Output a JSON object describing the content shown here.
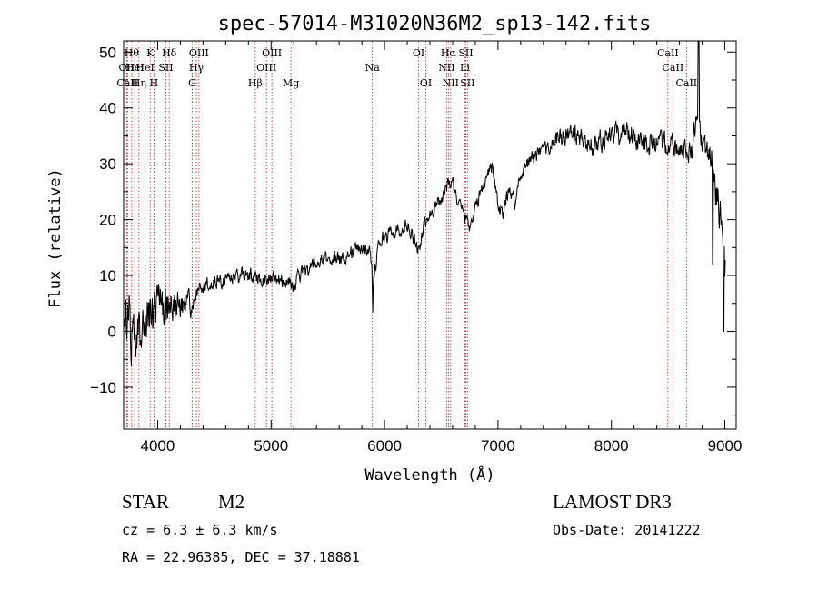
{
  "chart_data": {
    "type": "line",
    "title": "spec-57014-M31020N36M2_sp13-142.fits",
    "xlabel": "Wavelength (Å)",
    "ylabel": "Flux (relative)",
    "xlim": [
      3700,
      9100
    ],
    "ylim": [
      -17.5,
      52
    ],
    "x_ticks": [
      4000,
      5000,
      6000,
      7000,
      8000,
      9000
    ],
    "y_ticks": [
      -10,
      0,
      10,
      20,
      30,
      40,
      50
    ],
    "spectrum_anchor_points": [
      [
        3700,
        2
      ],
      [
        3750,
        1
      ],
      [
        3800,
        2
      ],
      [
        3850,
        2
      ],
      [
        3900,
        3
      ],
      [
        3950,
        3
      ],
      [
        4000,
        4
      ],
      [
        4050,
        4
      ],
      [
        4100,
        5
      ],
      [
        4150,
        5
      ],
      [
        4200,
        5
      ],
      [
        4250,
        4
      ],
      [
        4300,
        5
      ],
      [
        4350,
        7
      ],
      [
        4400,
        8
      ],
      [
        4500,
        9
      ],
      [
        4600,
        9
      ],
      [
        4700,
        10
      ],
      [
        4800,
        10
      ],
      [
        4850,
        10
      ],
      [
        4900,
        9.5
      ],
      [
        5000,
        9.5
      ],
      [
        5100,
        9
      ],
      [
        5150,
        9
      ],
      [
        5200,
        8
      ],
      [
        5250,
        10
      ],
      [
        5300,
        11
      ],
      [
        5400,
        12
      ],
      [
        5500,
        13
      ],
      [
        5600,
        13
      ],
      [
        5700,
        14
      ],
      [
        5800,
        15
      ],
      [
        5860,
        15
      ],
      [
        5890,
        11
      ],
      [
        5895,
        3
      ],
      [
        5900,
        9
      ],
      [
        5950,
        16
      ],
      [
        6000,
        17
      ],
      [
        6100,
        18
      ],
      [
        6200,
        19
      ],
      [
        6250,
        17
      ],
      [
        6300,
        14
      ],
      [
        6350,
        19
      ],
      [
        6400,
        21
      ],
      [
        6500,
        24
      ],
      [
        6550,
        26
      ],
      [
        6600,
        27
      ],
      [
        6620,
        25
      ],
      [
        6650,
        23
      ],
      [
        6700,
        21
      ],
      [
        6750,
        19
      ],
      [
        6800,
        22
      ],
      [
        6850,
        25
      ],
      [
        6900,
        28
      ],
      [
        6950,
        30
      ],
      [
        7000,
        22
      ],
      [
        7050,
        21
      ],
      [
        7100,
        26
      ],
      [
        7150,
        23
      ],
      [
        7200,
        28
      ],
      [
        7250,
        30
      ],
      [
        7300,
        31
      ],
      [
        7400,
        32
      ],
      [
        7500,
        34
      ],
      [
        7600,
        35
      ],
      [
        7700,
        35
      ],
      [
        7800,
        33
      ],
      [
        7900,
        34
      ],
      [
        8000,
        35
      ],
      [
        8100,
        36
      ],
      [
        8200,
        35
      ],
      [
        8300,
        34
      ],
      [
        8400,
        34
      ],
      [
        8500,
        33
      ],
      [
        8600,
        33
      ],
      [
        8700,
        32
      ],
      [
        8750,
        38
      ],
      [
        8800,
        33
      ],
      [
        8850,
        32
      ],
      [
        8900,
        31
      ],
      [
        8950,
        22
      ],
      [
        9000,
        10
      ]
    ],
    "spectral_lines": [
      {
        "wavelength": 3727,
        "label": "OII",
        "row": 1
      },
      {
        "wavelength": 3734,
        "label": "CaII",
        "row": 2
      },
      {
        "wavelength": 3771,
        "label": "Hθ",
        "row": 0
      },
      {
        "wavelength": 3798,
        "label": "HeI",
        "row": 1
      },
      {
        "wavelength": 3835,
        "label": "Hη",
        "row": 2
      },
      {
        "wavelength": 3889,
        "label": "HeI",
        "row": 1
      },
      {
        "wavelength": 3934,
        "label": "K",
        "row": 0
      },
      {
        "wavelength": 3968,
        "label": "H",
        "row": 2
      },
      {
        "wavelength": 4072,
        "label": "SII",
        "row": 1
      },
      {
        "wavelength": 4102,
        "label": "Hδ",
        "row": 0
      },
      {
        "wavelength": 4305,
        "label": "G",
        "row": 2
      },
      {
        "wavelength": 4341,
        "label": "Hγ",
        "row": 1
      },
      {
        "wavelength": 4364,
        "label": "OIII",
        "row": 0
      },
      {
        "wavelength": 4861,
        "label": "Hβ",
        "row": 2
      },
      {
        "wavelength": 4959,
        "label": "OIII",
        "row": 1
      },
      {
        "wavelength": 5007,
        "label": "OIII",
        "row": 0
      },
      {
        "wavelength": 5175,
        "label": "Mg",
        "row": 2
      },
      {
        "wavelength": 5893,
        "label": "Na",
        "row": 1
      },
      {
        "wavelength": 6300,
        "label": "OI",
        "row": 0
      },
      {
        "wavelength": 6364,
        "label": "OI",
        "row": 2
      },
      {
        "wavelength": 6548,
        "label": "NII",
        "row": 1
      },
      {
        "wavelength": 6563,
        "label": "Hα",
        "row": 0
      },
      {
        "wavelength": 6583,
        "label": "NII",
        "row": 2
      },
      {
        "wavelength": 6708,
        "label": "Li",
        "row": 1
      },
      {
        "wavelength": 6716,
        "label": "SII",
        "row": 0
      },
      {
        "wavelength": 6731,
        "label": "SII",
        "row": 2
      },
      {
        "wavelength": 8498,
        "label": "CaII",
        "row": 0
      },
      {
        "wavelength": 8542,
        "label": "CaII",
        "row": 1
      },
      {
        "wavelength": 8662,
        "label": "CaII",
        "row": 2
      }
    ]
  },
  "info": {
    "class_text": "STAR",
    "subclass_text": "M2",
    "survey": "LAMOST DR3",
    "cz_text": "cz = 6.3 ± 6.3 km/s",
    "obs_date": "Obs-Date: 20141222",
    "coords": "RA =  22.96385, DEC =  37.18881"
  },
  "colors": {
    "spectrum": "#000000",
    "line_marker": "#b22222",
    "axis": "#000000"
  }
}
